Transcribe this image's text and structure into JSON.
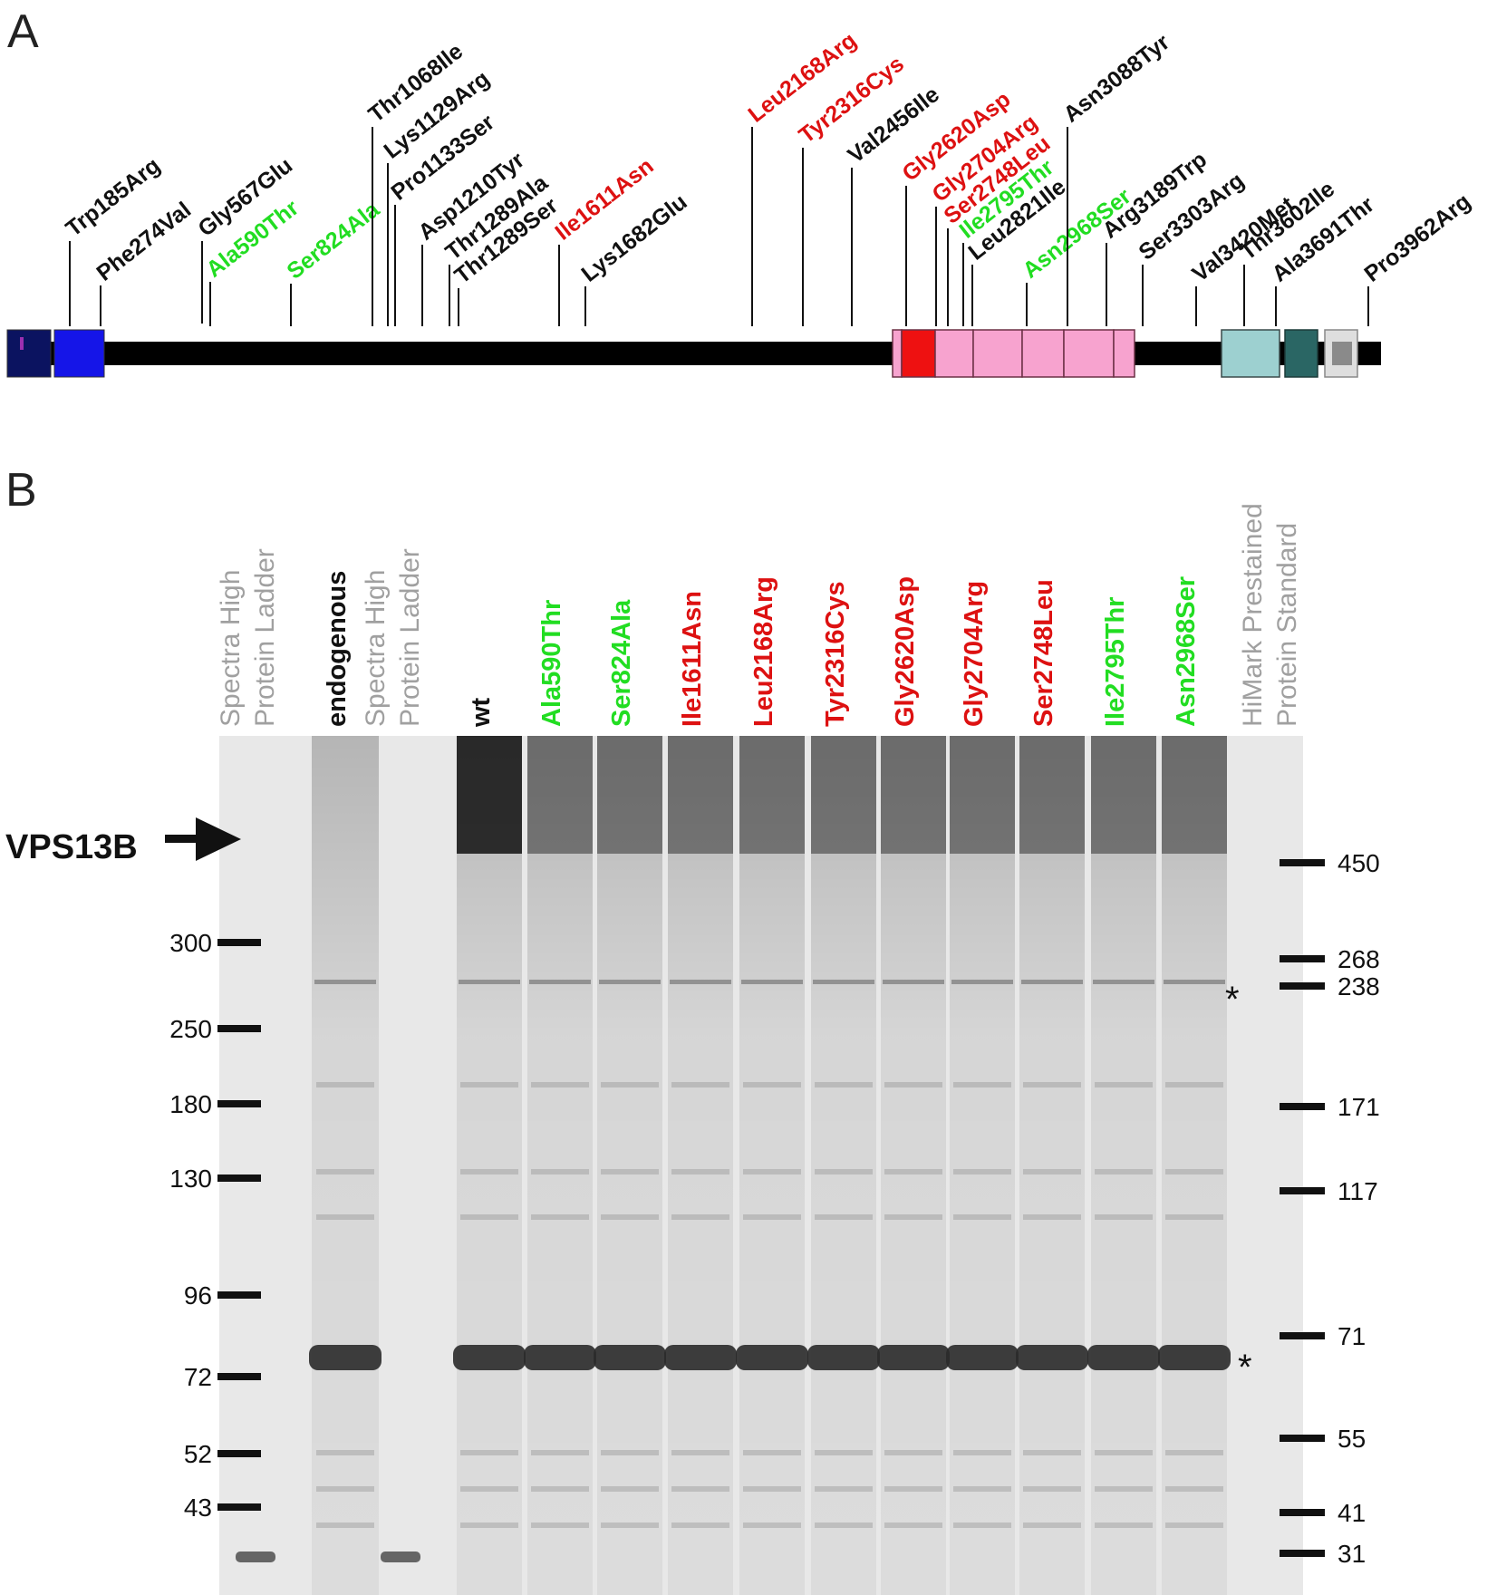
{
  "panel_a": {
    "letter": "A",
    "variants": [
      {
        "label": "Trp185Arg",
        "color": "black"
      },
      {
        "label": "Phe274Val",
        "color": "black"
      },
      {
        "label": "Gly567Glu",
        "color": "black"
      },
      {
        "label": "Ala590Thr",
        "color": "green"
      },
      {
        "label": "Ser824Ala",
        "color": "green"
      },
      {
        "label": "Thr1068Ile",
        "color": "black"
      },
      {
        "label": "Lys1129Arg",
        "color": "black"
      },
      {
        "label": "Pro1133Ser",
        "color": "black"
      },
      {
        "label": "Asp1210Tyr",
        "color": "black"
      },
      {
        "label": "Thr1289Ala",
        "color": "black"
      },
      {
        "label": "Thr1289Ser",
        "color": "black"
      },
      {
        "label": "Ile1611Asn",
        "color": "red"
      },
      {
        "label": "Lys1682Glu",
        "color": "black"
      },
      {
        "label": "Leu2168Arg",
        "color": "red"
      },
      {
        "label": "Tyr2316Cys",
        "color": "red"
      },
      {
        "label": "Val2456Ile",
        "color": "black"
      },
      {
        "label": "Gly2620Asp",
        "color": "red"
      },
      {
        "label": "Gly2704Arg",
        "color": "red"
      },
      {
        "label": "Ser2748Leu",
        "color": "red"
      },
      {
        "label": "Ile2795Thr",
        "color": "green"
      },
      {
        "label": "Leu2821Ile",
        "color": "black"
      },
      {
        "label": "Asn2968Ser",
        "color": "green"
      },
      {
        "label": "Asn3088Tyr",
        "color": "black"
      },
      {
        "label": "Arg3189Trp",
        "color": "black"
      },
      {
        "label": "Ser3303Arg",
        "color": "black"
      },
      {
        "label": "Val3420Met",
        "color": "black"
      },
      {
        "label": "Thr3602Ile",
        "color": "black"
      },
      {
        "label": "Ala3691Thr",
        "color": "black"
      },
      {
        "label": "Pro3962Arg",
        "color": "black"
      }
    ]
  },
  "panel_b": {
    "letter": "B",
    "lanes": [
      {
        "line1": "Spectra High",
        "line2": "Protein Ladder",
        "color": "gray"
      },
      {
        "line1": "endogenous",
        "line2": "",
        "color": "black"
      },
      {
        "line1": "Spectra High",
        "line2": "Protein Ladder",
        "color": "gray"
      },
      {
        "line1": "wt",
        "line2": "",
        "color": "black"
      },
      {
        "line1": "Ala590Thr",
        "line2": "",
        "color": "green"
      },
      {
        "line1": "Ser824Ala",
        "line2": "",
        "color": "green"
      },
      {
        "line1": "Ile1611Asn",
        "line2": "",
        "color": "red"
      },
      {
        "line1": "Leu2168Arg",
        "line2": "",
        "color": "red"
      },
      {
        "line1": "Tyr2316Cys",
        "line2": "",
        "color": "red"
      },
      {
        "line1": "Gly2620Asp",
        "line2": "",
        "color": "red"
      },
      {
        "line1": "Gly2704Arg",
        "line2": "",
        "color": "red"
      },
      {
        "line1": "Ser2748Leu",
        "line2": "",
        "color": "red"
      },
      {
        "line1": "Ile2795Thr",
        "line2": "",
        "color": "green"
      },
      {
        "line1": "Asn2968Ser",
        "line2": "",
        "color": "green"
      },
      {
        "line1": "HiMark Prestained",
        "line2": "Protein Standard",
        "color": "gray"
      }
    ],
    "band_label": "VPS13B",
    "left_markers": [
      "300",
      "250",
      "180",
      "130",
      "96",
      "72",
      "52",
      "43"
    ],
    "right_markers": [
      "450",
      "268",
      "238",
      "171",
      "117",
      "71",
      "55",
      "41",
      "31"
    ],
    "asterisk": "*"
  },
  "colors": {
    "black": "#111111",
    "red": "#dd1111",
    "green": "#22dd22",
    "gray": "#a0a0a0",
    "domain_navy": "#0b1360",
    "domain_blue": "#1515e8",
    "domain_red": "#ee1111",
    "domain_pink": "#f7a3cf",
    "domain_teal_light": "#9dd0d0",
    "domain_teal_dark": "#2a6664",
    "domain_gray": "#d6d6d6"
  }
}
